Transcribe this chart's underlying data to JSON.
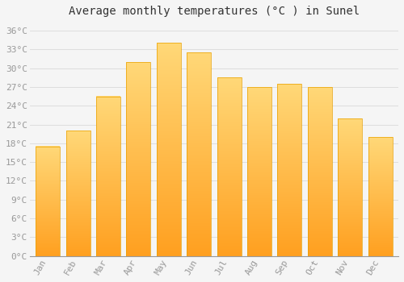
{
  "title": "Average monthly temperatures (°C ) in Sunel",
  "months": [
    "Jan",
    "Feb",
    "Mar",
    "Apr",
    "May",
    "Jun",
    "Jul",
    "Aug",
    "Sep",
    "Oct",
    "Nov",
    "Dec"
  ],
  "values": [
    17.5,
    20.0,
    25.5,
    31.0,
    34.0,
    32.5,
    28.5,
    27.0,
    27.5,
    27.0,
    22.0,
    19.0
  ],
  "bar_color_bottom": "#FFA500",
  "bar_color_top": "#FFD060",
  "bar_edge_color": "#E8A000",
  "background_color": "#f5f5f5",
  "grid_color": "#dddddd",
  "yticks": [
    0,
    3,
    6,
    9,
    12,
    15,
    18,
    21,
    24,
    27,
    30,
    33,
    36
  ],
  "ylim": [
    0,
    37.5
  ],
  "title_fontsize": 10,
  "tick_fontsize": 8,
  "tick_color": "#999999",
  "title_color": "#333333",
  "font_family": "monospace"
}
